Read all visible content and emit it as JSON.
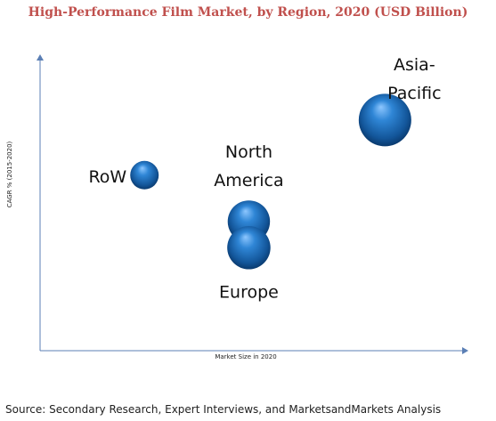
{
  "title": "High-Performance Film Market, by Region, 2020 (USD Billion)",
  "source": "Source: Secondary Research, Expert Interviews, and MarketsandMarkets Analysis",
  "colors": {
    "title": "#c0504d",
    "axis": "#5b7fb5",
    "bubble": "#1b6fb8"
  },
  "chart_data": {
    "type": "bubble",
    "xlabel": "Market Size in 2020",
    "ylabel": "CAGR % (2015-2020)",
    "series": [
      {
        "label": [
          "RoW"
        ],
        "x": 2.3,
        "y": 6.05,
        "size": 1.0
      },
      {
        "label": [
          "North",
          "America"
        ],
        "x": 4.6,
        "y": 4.45,
        "size": 2.2
      },
      {
        "label": [
          "Europe"
        ],
        "x": 4.6,
        "y": 3.55,
        "size": 2.3
      },
      {
        "label": [
          "Asia-",
          "Pacific"
        ],
        "x": 7.6,
        "y": 7.95,
        "size": 3.4
      }
    ],
    "xlim": [
      0,
      9.3
    ],
    "ylim": [
      0,
      10.0
    ],
    "grid": false,
    "legend": "none"
  }
}
